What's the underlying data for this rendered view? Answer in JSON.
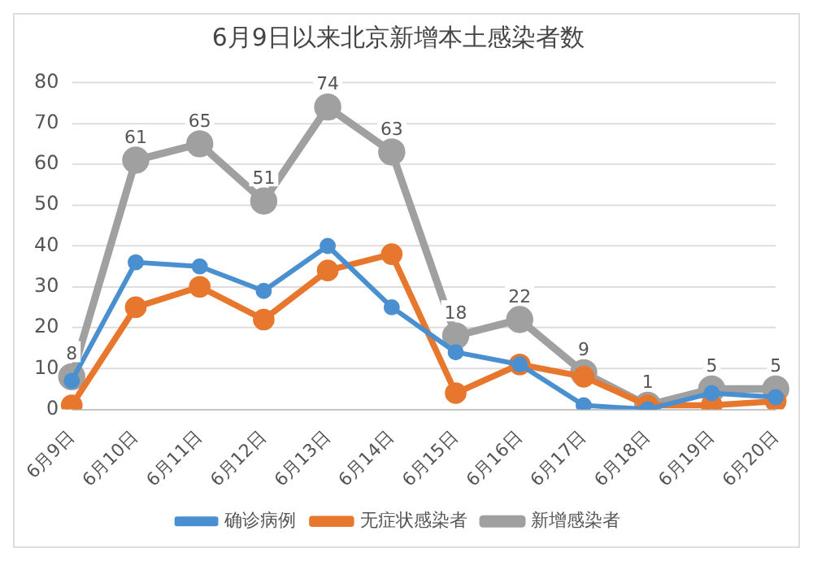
{
  "chart_data": {
    "type": "line",
    "title": "6月9日以来北京新增本土感染者数",
    "categories": [
      "6月9日",
      "6月10日",
      "6月11日",
      "6月12日",
      "6月13日",
      "6月14日",
      "6月15日",
      "6月16日",
      "6月17日",
      "6月18日",
      "6月19日",
      "6月20日"
    ],
    "series": [
      {
        "name": "确诊病例",
        "color": "#4a8fd0",
        "values": [
          7,
          36,
          35,
          29,
          40,
          25,
          14,
          11,
          1,
          0,
          4,
          3
        ]
      },
      {
        "name": "无症状感染者",
        "color": "#e8772e",
        "values": [
          1,
          25,
          30,
          22,
          34,
          38,
          4,
          11,
          8,
          1,
          1,
          2
        ]
      },
      {
        "name": "新增感染者",
        "color": "#a0a0a0",
        "values": [
          8,
          61,
          65,
          51,
          74,
          63,
          18,
          22,
          9,
          1,
          5,
          5
        ],
        "value_labels": [
          "8",
          "61",
          "65",
          "51",
          "74",
          "63",
          "18",
          "22",
          "9",
          "1",
          "5",
          "5"
        ]
      }
    ],
    "ylim": [
      0,
      80
    ],
    "yticks": [
      0,
      10,
      20,
      30,
      40,
      50,
      60,
      70,
      80
    ],
    "grid": "y",
    "legend": "bottom",
    "marker": "circle",
    "line_style": "solid"
  }
}
